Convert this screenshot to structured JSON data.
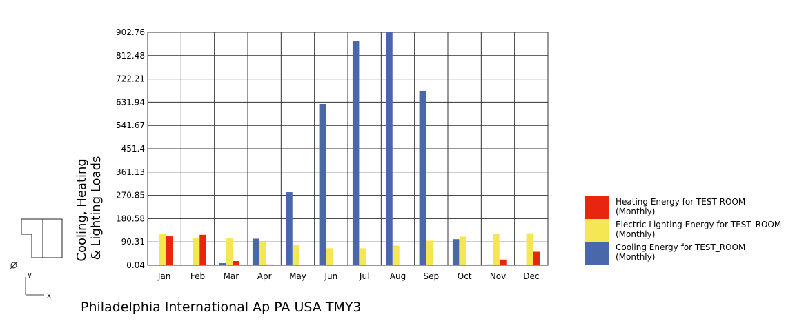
{
  "chart_data": {
    "type": "bar",
    "categories": [
      "Jan",
      "Feb",
      "Mar",
      "Apr",
      "May",
      "Jun",
      "Jul",
      "Aug",
      "Sep",
      "Oct",
      "Nov",
      "Dec"
    ],
    "ylabel_lines": [
      "Cooling, Heating",
      "& Lighting Loads"
    ],
    "yticks": [
      "0.04",
      "90.31",
      "180.58",
      "270.85",
      "361.13",
      "451.4",
      "541.67",
      "631.94",
      "722.21",
      "812.48",
      "902.76"
    ],
    "ylim": [
      0.04,
      902.76
    ],
    "grid": true,
    "legend_placement": "right",
    "series": [
      {
        "name": "Cooling Energy for TEST_ROOM (Monthly)",
        "legend_lines": [
          "Cooling Energy for TEST_ROOM",
          "(Monthly)"
        ],
        "color": "#4a67aa",
        "values": [
          0,
          0,
          8,
          103,
          283,
          625,
          868,
          902.76,
          676,
          101,
          3,
          0
        ]
      },
      {
        "name": "Electric Lighting Energy for TEST_ROOM (Monthly)",
        "legend_lines": [
          "Electric Lighting Energy for TEST_ROOM",
          "(Monthly)"
        ],
        "color": "#f5e653",
        "values": [
          122,
          106,
          104,
          88,
          78,
          66,
          66,
          76,
          95,
          111,
          121,
          124
        ]
      },
      {
        "name": "Heating Energy for TEST  ROOM (Monthly)",
        "legend_lines": [
          "Heating Energy for TEST  ROOM",
          "(Monthly)"
        ],
        "color": "#e8260f",
        "values": [
          112,
          118,
          16,
          3,
          0,
          0,
          0,
          0,
          0,
          0,
          22,
          52
        ]
      }
    ]
  },
  "footer_title": "Philadelphia International Ap PA USA TMY3",
  "axis_indicator": {
    "y": "y",
    "x": "x"
  }
}
